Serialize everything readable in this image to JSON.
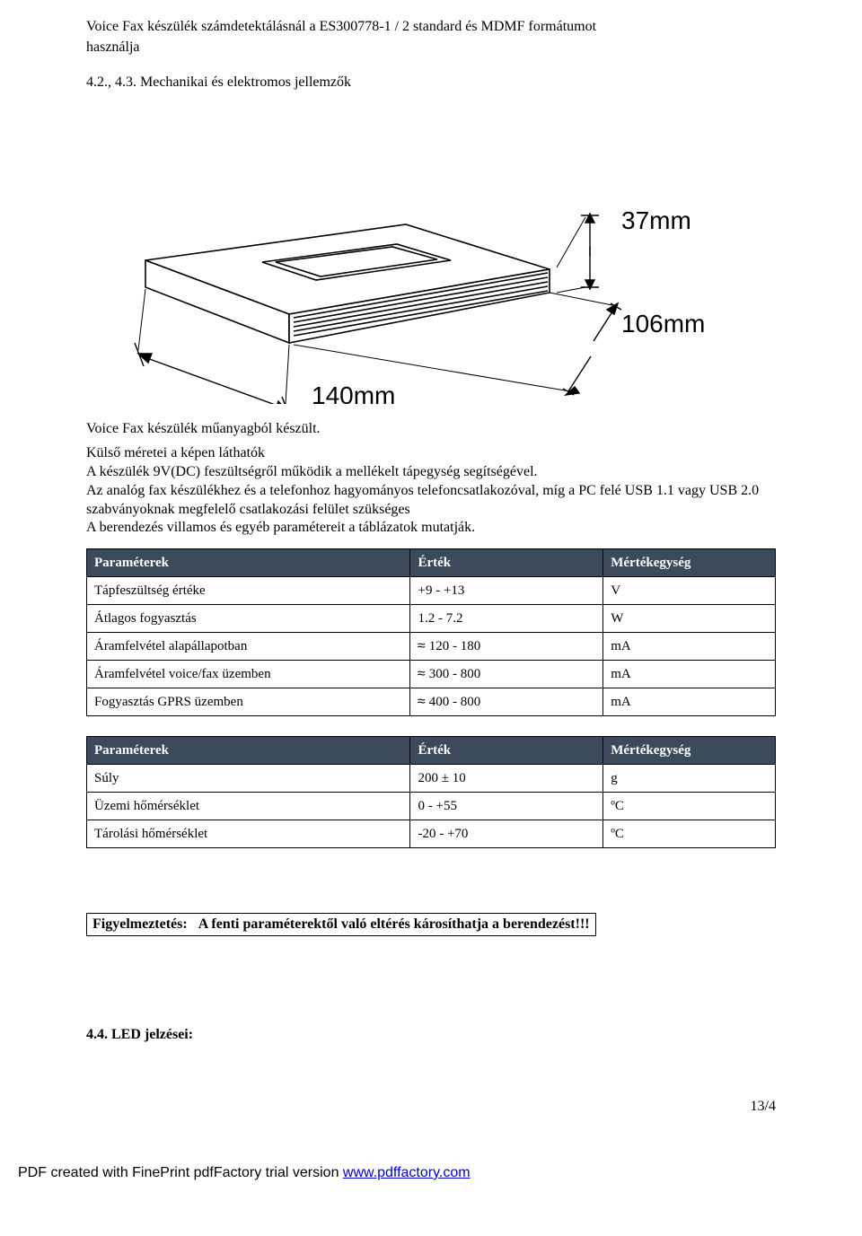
{
  "intro": {
    "line1": "Voice Fax készülék számdetektálásnál a ES300778-1 / 2 standard és MDMF formátumot",
    "line2": "használja"
  },
  "section_4_2_4_3": "4.2., 4.3. Mechanikai és elektromos jellemzők",
  "diagram": {
    "width_label": "140mm",
    "depth_label": "106mm",
    "height_label": "37mm",
    "label_fontsize": 28,
    "label_font": "Arial",
    "stroke": "#000000",
    "bg": "#ffffff"
  },
  "material_text": "Voice Fax készülék műanyagból készült.",
  "desc_block": "Külső méretei a képen láthatók\nA készülék 9V(DC) feszültségről működik a mellékelt tápegység segítségével.\nAz analóg fax készülékhez és a telefonhoz hagyományos telefoncsatlakozóval, míg a PC felé USB 1.1 vagy USB 2.0 szabványoknak megfelelő csatlakozási felület szükséges\nA berendezés villamos és egyéb paramétereit a táblázatok mutatják.",
  "table_headers": {
    "param": "Paraméterek",
    "value": "Érték",
    "unit": "Mértékegység"
  },
  "table1": {
    "header_bg": "#3b4a5a",
    "header_fg": "#ffffff",
    "border": "#000000",
    "rows": [
      {
        "param": "Tápfeszültség értéke",
        "value": "+9 - +13",
        "unit": "V",
        "approx": false
      },
      {
        "param": "Átlagos fogyasztás",
        "value": "1.2 - 7.2",
        "unit": "W",
        "approx": false
      },
      {
        "param": "Áramfelvétel alapállapotban",
        "value": "120 - 180",
        "unit": "mA",
        "approx": true
      },
      {
        "param": "Áramfelvétel voice/fax üzemben",
        "value": "300 - 800",
        "unit": "mA",
        "approx": true
      },
      {
        "param": "Fogyasztás GPRS üzemben",
        "value": "400 - 800",
        "unit": "mA",
        "approx": true
      }
    ]
  },
  "table2": {
    "header_bg": "#3b4a5a",
    "header_fg": "#ffffff",
    "border": "#000000",
    "rows": [
      {
        "param": "Súly",
        "value": "200 ± 10",
        "unit": "g"
      },
      {
        "param": "Üzemi hőmérséklet",
        "value": "0 - +55",
        "unit": "ºC"
      },
      {
        "param": "Tárolási hőmérséklet",
        "value": "-20 - +70",
        "unit": "ºC"
      }
    ]
  },
  "warning": {
    "label": "Figyelmeztetés:",
    "text": "A fenti paraméterektől való eltérés károsíthatja a berendezést!!!"
  },
  "led_heading": "4.4. LED jelzései:",
  "page_number": "13/4",
  "footer": {
    "prefix": "PDF created with FinePrint pdfFactory trial version ",
    "link_text": "www.pdffactory.com"
  }
}
